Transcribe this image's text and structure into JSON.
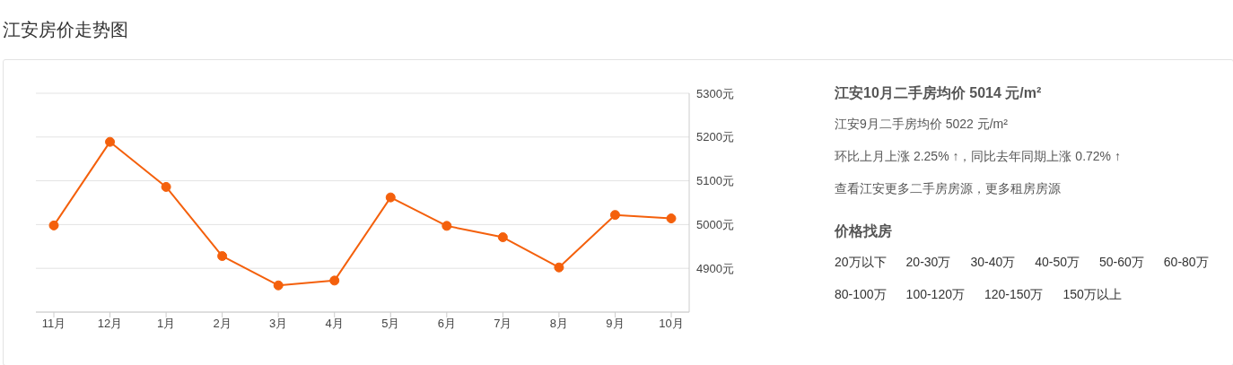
{
  "chart_data": {
    "type": "line",
    "title": "江安房价走势图",
    "categories": [
      "11月",
      "12月",
      "1月",
      "2月",
      "3月",
      "4月",
      "5月",
      "6月",
      "7月",
      "8月",
      "9月",
      "10月"
    ],
    "series": [
      {
        "color": "#f4600c",
        "values": [
          4998,
          5189,
          5086,
          4928,
          4861,
          4872,
          5062,
          4997,
          4971,
          4902,
          5022,
          5014
        ]
      }
    ],
    "ylim": [
      4800,
      5300
    ],
    "yticks": [
      {
        "value": 4800,
        "label": null
      },
      {
        "value": 4900,
        "label": "4900元"
      },
      {
        "value": 5000,
        "label": "5000元"
      },
      {
        "value": 5100,
        "label": "5100元"
      },
      {
        "value": 5200,
        "label": "5200元"
      },
      {
        "value": 5300,
        "label": "5300元"
      }
    ],
    "grid": "y",
    "marker": "circle",
    "line_style": "solid",
    "legend": false,
    "annotations": [
      "江安10月二手房均价 5014 元/m²",
      "江安9月二手房均价 5022 元/m²",
      "环比上月上涨 2.25% ↑，同比去年同期上涨 0.72% ↑",
      "查看江安更多二手房房源，更多租房房源",
      "价格找房",
      "20万以下",
      "20-30万",
      "30-40万",
      "40-50万",
      "50-60万",
      "60-80万",
      "80-100万",
      "100-120万",
      "120-150万",
      "150万以上"
    ]
  }
}
